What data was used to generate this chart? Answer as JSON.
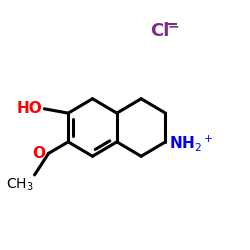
{
  "background_color": "#ffffff",
  "bond_color": "#000000",
  "bond_lw": 2.2,
  "cl_text": "Cl",
  "cl_color": "#7b2d8b",
  "cl_fontsize": 13,
  "ho_color": "#ff0000",
  "o_color": "#ff0000",
  "nh2_color": "#0000ee",
  "ch3_color": "#000000"
}
